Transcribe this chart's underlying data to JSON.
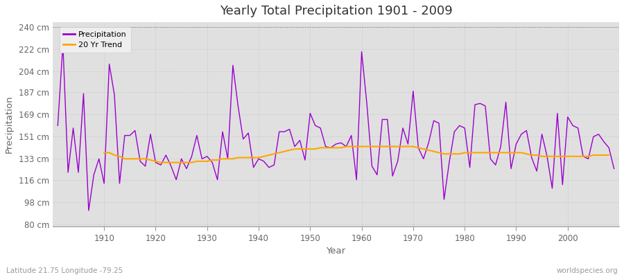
{
  "title": "Yearly Total Precipitation 1901 - 2009",
  "xlabel": "Year",
  "ylabel": "Precipitation",
  "subtitle_left": "Latitude 21.75 Longitude -79.25",
  "subtitle_right": "worldspecies.org",
  "legend_labels": [
    "Precipitation",
    "20 Yr Trend"
  ],
  "precip_color": "#9900cc",
  "trend_color": "#ffa500",
  "fig_bg_color": "#ffffff",
  "plot_bg_color": "#e0e0e0",
  "ytick_labels": [
    "80 cm",
    "98 cm",
    "116 cm",
    "133 cm",
    "151 cm",
    "169 cm",
    "187 cm",
    "204 cm",
    "222 cm",
    "240 cm"
  ],
  "ytick_values": [
    80,
    98,
    116,
    133,
    151,
    169,
    187,
    204,
    222,
    240
  ],
  "ylim": [
    78,
    244
  ],
  "xlim": [
    1900,
    2010
  ],
  "xticks": [
    1910,
    1920,
    1930,
    1940,
    1950,
    1960,
    1970,
    1980,
    1990,
    2000
  ],
  "years": [
    1901,
    1902,
    1903,
    1904,
    1905,
    1906,
    1907,
    1908,
    1909,
    1910,
    1911,
    1912,
    1913,
    1914,
    1915,
    1916,
    1917,
    1918,
    1919,
    1920,
    1921,
    1922,
    1923,
    1924,
    1925,
    1926,
    1927,
    1928,
    1929,
    1930,
    1931,
    1932,
    1933,
    1934,
    1935,
    1936,
    1937,
    1938,
    1939,
    1940,
    1941,
    1942,
    1943,
    1944,
    1945,
    1946,
    1947,
    1948,
    1949,
    1950,
    1951,
    1952,
    1953,
    1954,
    1955,
    1956,
    1957,
    1958,
    1959,
    1960,
    1961,
    1962,
    1963,
    1964,
    1965,
    1966,
    1967,
    1968,
    1969,
    1970,
    1971,
    1972,
    1973,
    1974,
    1975,
    1976,
    1977,
    1978,
    1979,
    1980,
    1981,
    1982,
    1983,
    1984,
    1985,
    1986,
    1987,
    1988,
    1989,
    1990,
    1991,
    1992,
    1993,
    1994,
    1995,
    1996,
    1997,
    1998,
    1999,
    2000,
    2001,
    2002,
    2003,
    2004,
    2005,
    2006,
    2007,
    2008,
    2009
  ],
  "precip": [
    160,
    226,
    122,
    158,
    122,
    186,
    91,
    120,
    133,
    113,
    210,
    185,
    113,
    152,
    152,
    156,
    131,
    127,
    153,
    130,
    128,
    136,
    127,
    116,
    133,
    125,
    135,
    152,
    133,
    135,
    130,
    116,
    155,
    133,
    209,
    176,
    149,
    154,
    126,
    133,
    131,
    126,
    128,
    155,
    155,
    157,
    143,
    148,
    132,
    170,
    160,
    158,
    143,
    142,
    145,
    146,
    143,
    152,
    116,
    220,
    178,
    127,
    120,
    165,
    165,
    119,
    131,
    158,
    145,
    188,
    142,
    133,
    146,
    164,
    162,
    100,
    130,
    155,
    160,
    158,
    126,
    177,
    178,
    176,
    133,
    128,
    143,
    179,
    125,
    145,
    153,
    156,
    134,
    123,
    153,
    135,
    109,
    170,
    112,
    167,
    160,
    158,
    135,
    133,
    151,
    153,
    147,
    142,
    125
  ],
  "trend": [
    null,
    null,
    null,
    null,
    null,
    null,
    null,
    null,
    null,
    138,
    138,
    136,
    135,
    133,
    133,
    133,
    133,
    133,
    132,
    131,
    130,
    130,
    130,
    130,
    130,
    130,
    130,
    131,
    131,
    131,
    132,
    132,
    133,
    133,
    133,
    134,
    134,
    134,
    134,
    134,
    135,
    136,
    137,
    138,
    139,
    140,
    141,
    141,
    141,
    141,
    141,
    142,
    142,
    142,
    142,
    142,
    143,
    143,
    143,
    143,
    143,
    143,
    143,
    143,
    143,
    143,
    143,
    143,
    143,
    143,
    142,
    141,
    140,
    139,
    138,
    137,
    137,
    137,
    137,
    138,
    138,
    138,
    138,
    138,
    138,
    138,
    138,
    138,
    138,
    138,
    138,
    137,
    136,
    136,
    135,
    135,
    135,
    135,
    135,
    135,
    135,
    135,
    135,
    135,
    136,
    136,
    136,
    136,
    null
  ]
}
